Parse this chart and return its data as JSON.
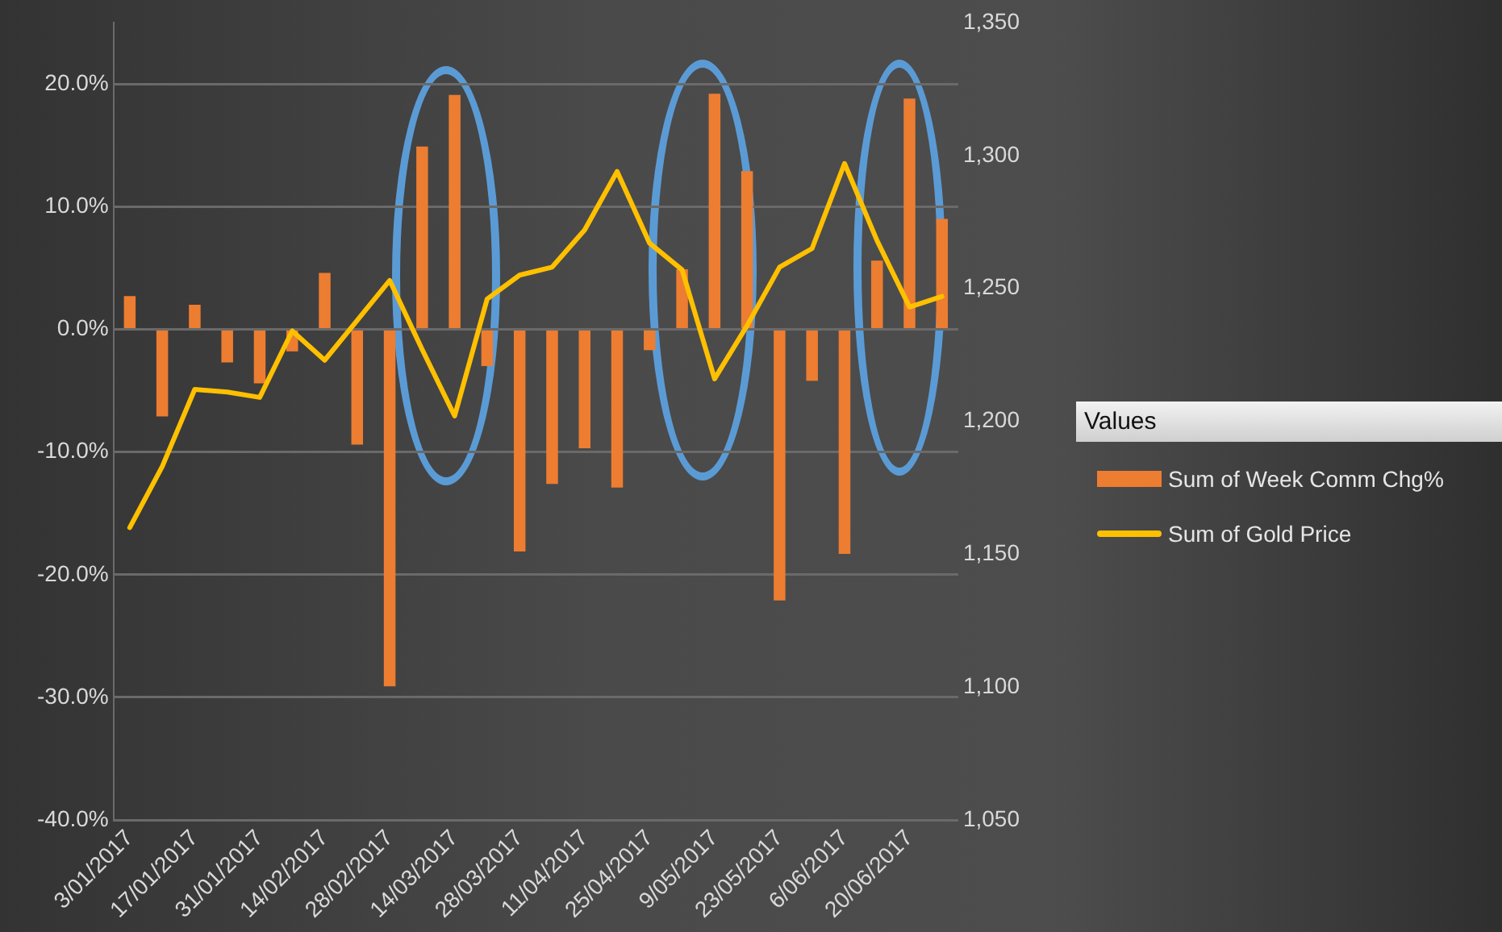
{
  "chart_data": {
    "type": "bar",
    "legend_title": "Values",
    "legend": "right",
    "grid": "y",
    "categories": [
      "3/01/2017",
      null,
      "17/01/2017",
      null,
      "31/01/2017",
      null,
      "14/02/2017",
      null,
      "28/02/2017",
      null,
      "14/03/2017",
      null,
      "28/03/2017",
      null,
      "11/04/2017",
      null,
      "25/04/2017",
      null,
      "9/05/2017",
      null,
      "23/05/2017",
      null,
      "6/06/2017",
      null,
      "20/06/2017",
      null
    ],
    "series": [
      {
        "name": "Sum of Week Comm Chg%",
        "color": "#ed7d31",
        "values": [
          2.7,
          -7.1,
          2.0,
          -2.7,
          -4.4,
          -1.8,
          4.6,
          -9.4,
          -29.1,
          14.9,
          19.1,
          -3,
          -18.1,
          -12.6,
          -9.7,
          -12.9,
          -1.7,
          4.9,
          19.2,
          12.9,
          -22.1,
          -4.2,
          -18.3,
          5.6,
          18.8,
          9.0
        ]
      },
      {
        "name": "Sum of Gold Price",
        "type": "line",
        "axis": "y2",
        "color": "#ffc000",
        "marker": "none",
        "line_style": "solid",
        "values": [
          1160,
          1183,
          1212,
          1211,
          1209,
          1234,
          1223,
          1238,
          1253,
          1227,
          1202,
          1246,
          1255,
          1258,
          1272,
          1294,
          1267,
          1257,
          1216,
          1236,
          1258,
          1265,
          1297,
          1268,
          1243,
          1247
        ]
      }
    ],
    "ylim": [
      -40,
      25
    ],
    "yticks": [
      {
        "value": -40,
        "label": "-40.0%"
      },
      {
        "value": -30,
        "label": "-30.0%"
      },
      {
        "value": -20,
        "label": "-20.0%"
      },
      {
        "value": -10,
        "label": "-10.0%"
      },
      {
        "value": 0,
        "label": "0.0%"
      },
      {
        "value": 10,
        "label": "10.0%"
      },
      {
        "value": 20,
        "label": "20.0%"
      }
    ],
    "y2lim": [
      1050,
      1350
    ],
    "y2ticks": [
      {
        "value": 1050,
        "label": "1,050"
      },
      {
        "value": 1100,
        "label": "1,100"
      },
      {
        "value": 1150,
        "label": "1,150"
      },
      {
        "value": 1200,
        "label": "1,200"
      },
      {
        "value": 1250,
        "label": "1,250"
      },
      {
        "value": 1300,
        "label": "1,300"
      },
      {
        "value": 1350,
        "label": "1,350"
      }
    ]
  }
}
